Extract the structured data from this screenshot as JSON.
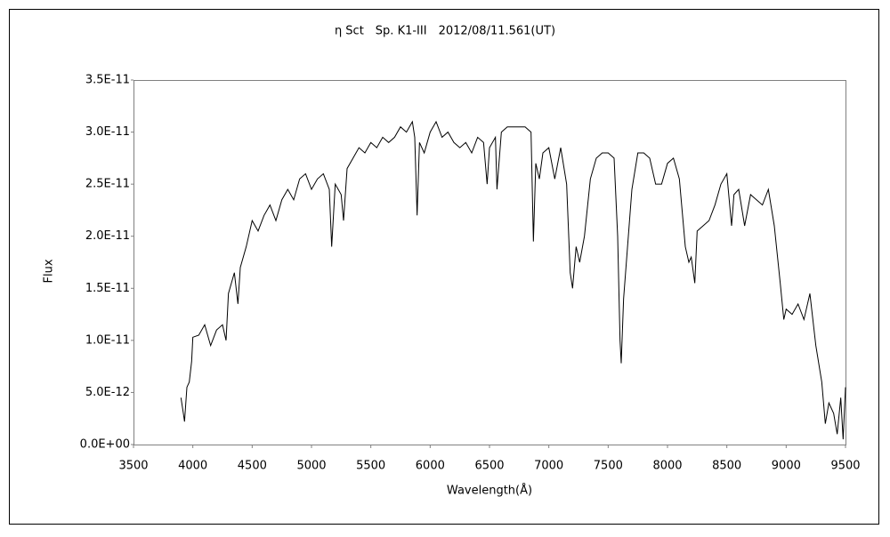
{
  "chart_data": {
    "type": "line",
    "title": "η Sct　Sp. K1-III　2012/08/11.561(UT)",
    "x_label": "Wavelength(Å)",
    "y_label": "Flux",
    "x": [
      3900,
      3920,
      3930,
      3950,
      3970,
      3990,
      4000,
      4050,
      4100,
      4150,
      4200,
      4250,
      4280,
      4300,
      4350,
      4380,
      4400,
      4450,
      4500,
      4550,
      4600,
      4650,
      4700,
      4750,
      4800,
      4850,
      4900,
      4950,
      5000,
      5050,
      5100,
      5150,
      5170,
      5200,
      5250,
      5270,
      5300,
      5350,
      5400,
      5450,
      5500,
      5550,
      5600,
      5650,
      5700,
      5750,
      5800,
      5850,
      5870,
      5890,
      5910,
      5950,
      6000,
      6050,
      6100,
      6150,
      6200,
      6250,
      6300,
      6350,
      6400,
      6450,
      6480,
      6500,
      6550,
      6563,
      6600,
      6650,
      6700,
      6750,
      6800,
      6850,
      6870,
      6890,
      6920,
      6950,
      7000,
      7050,
      7100,
      7150,
      7180,
      7200,
      7230,
      7260,
      7300,
      7350,
      7400,
      7450,
      7500,
      7550,
      7580,
      7600,
      7610,
      7630,
      7650,
      7700,
      7750,
      7800,
      7850,
      7900,
      7950,
      8000,
      8050,
      8100,
      8150,
      8180,
      8200,
      8230,
      8250,
      8300,
      8350,
      8400,
      8450,
      8500,
      8540,
      8560,
      8600,
      8650,
      8700,
      8750,
      8800,
      8850,
      8900,
      8950,
      8980,
      9000,
      9050,
      9100,
      9150,
      9200,
      9250,
      9300,
      9330,
      9360,
      9400,
      9430,
      9460,
      9480,
      9500
    ],
    "series": [
      {
        "name": "Flux",
        "color": "#000000",
        "values": [
          4.5e-12,
          3e-12,
          2.2e-12,
          5.5e-12,
          6e-12,
          8e-12,
          1.03e-11,
          1.05e-11,
          1.15e-11,
          9.5e-12,
          1.1e-11,
          1.15e-11,
          1e-11,
          1.45e-11,
          1.65e-11,
          1.35e-11,
          1.7e-11,
          1.9e-11,
          2.15e-11,
          2.05e-11,
          2.2e-11,
          2.3e-11,
          2.15e-11,
          2.35e-11,
          2.45e-11,
          2.35e-11,
          2.55e-11,
          2.6e-11,
          2.45e-11,
          2.55e-11,
          2.6e-11,
          2.45e-11,
          1.9e-11,
          2.5e-11,
          2.4e-11,
          2.15e-11,
          2.65e-11,
          2.75e-11,
          2.85e-11,
          2.8e-11,
          2.9e-11,
          2.85e-11,
          2.95e-11,
          2.9e-11,
          2.95e-11,
          3.05e-11,
          3e-11,
          3.1e-11,
          2.95e-11,
          2.2e-11,
          2.9e-11,
          2.8e-11,
          3e-11,
          3.1e-11,
          2.95e-11,
          3e-11,
          2.9e-11,
          2.85e-11,
          2.9e-11,
          2.8e-11,
          2.95e-11,
          2.9e-11,
          2.5e-11,
          2.85e-11,
          2.95e-11,
          2.45e-11,
          3e-11,
          3.05e-11,
          3.05e-11,
          3.05e-11,
          3.05e-11,
          3e-11,
          1.95e-11,
          2.7e-11,
          2.55e-11,
          2.8e-11,
          2.85e-11,
          2.55e-11,
          2.85e-11,
          2.5e-11,
          1.65e-11,
          1.5e-11,
          1.9e-11,
          1.75e-11,
          2e-11,
          2.55e-11,
          2.75e-11,
          2.8e-11,
          2.8e-11,
          2.75e-11,
          2e-11,
          1e-11,
          7.8e-12,
          1.4e-11,
          1.7e-11,
          2.45e-11,
          2.8e-11,
          2.8e-11,
          2.75e-11,
          2.5e-11,
          2.5e-11,
          2.7e-11,
          2.75e-11,
          2.55e-11,
          1.9e-11,
          1.75e-11,
          1.8e-11,
          1.55e-11,
          2.05e-11,
          2.1e-11,
          2.15e-11,
          2.3e-11,
          2.5e-11,
          2.6e-11,
          2.1e-11,
          2.4e-11,
          2.45e-11,
          2.1e-11,
          2.4e-11,
          2.35e-11,
          2.3e-11,
          2.45e-11,
          2.1e-11,
          1.55e-11,
          1.2e-11,
          1.3e-11,
          1.25e-11,
          1.35e-11,
          1.2e-11,
          1.45e-11,
          9.5e-12,
          6e-12,
          2e-12,
          4e-12,
          3e-12,
          1e-12,
          4.5e-12,
          5e-13,
          5.5e-12
        ]
      }
    ],
    "xlim": [
      3500,
      9500
    ],
    "xticks": [
      3500,
      4000,
      4500,
      5000,
      5500,
      6000,
      6500,
      7000,
      7500,
      8000,
      8500,
      9000,
      9500
    ],
    "ylim": [
      0,
      3.5e-11
    ],
    "yticks": [
      {
        "value": 0,
        "label": "0.0E+00"
      },
      {
        "value": 5e-12,
        "label": "5.0E-12"
      },
      {
        "value": 1e-11,
        "label": "1.0E-11"
      },
      {
        "value": 1.5e-11,
        "label": "1.5E-11"
      },
      {
        "value": 2e-11,
        "label": "2.0E-11"
      },
      {
        "value": 2.5e-11,
        "label": "2.5E-11"
      },
      {
        "value": 3e-11,
        "label": "3.0E-11"
      },
      {
        "value": 3.5e-11,
        "label": "3.5E-11"
      }
    ],
    "grid": false
  }
}
